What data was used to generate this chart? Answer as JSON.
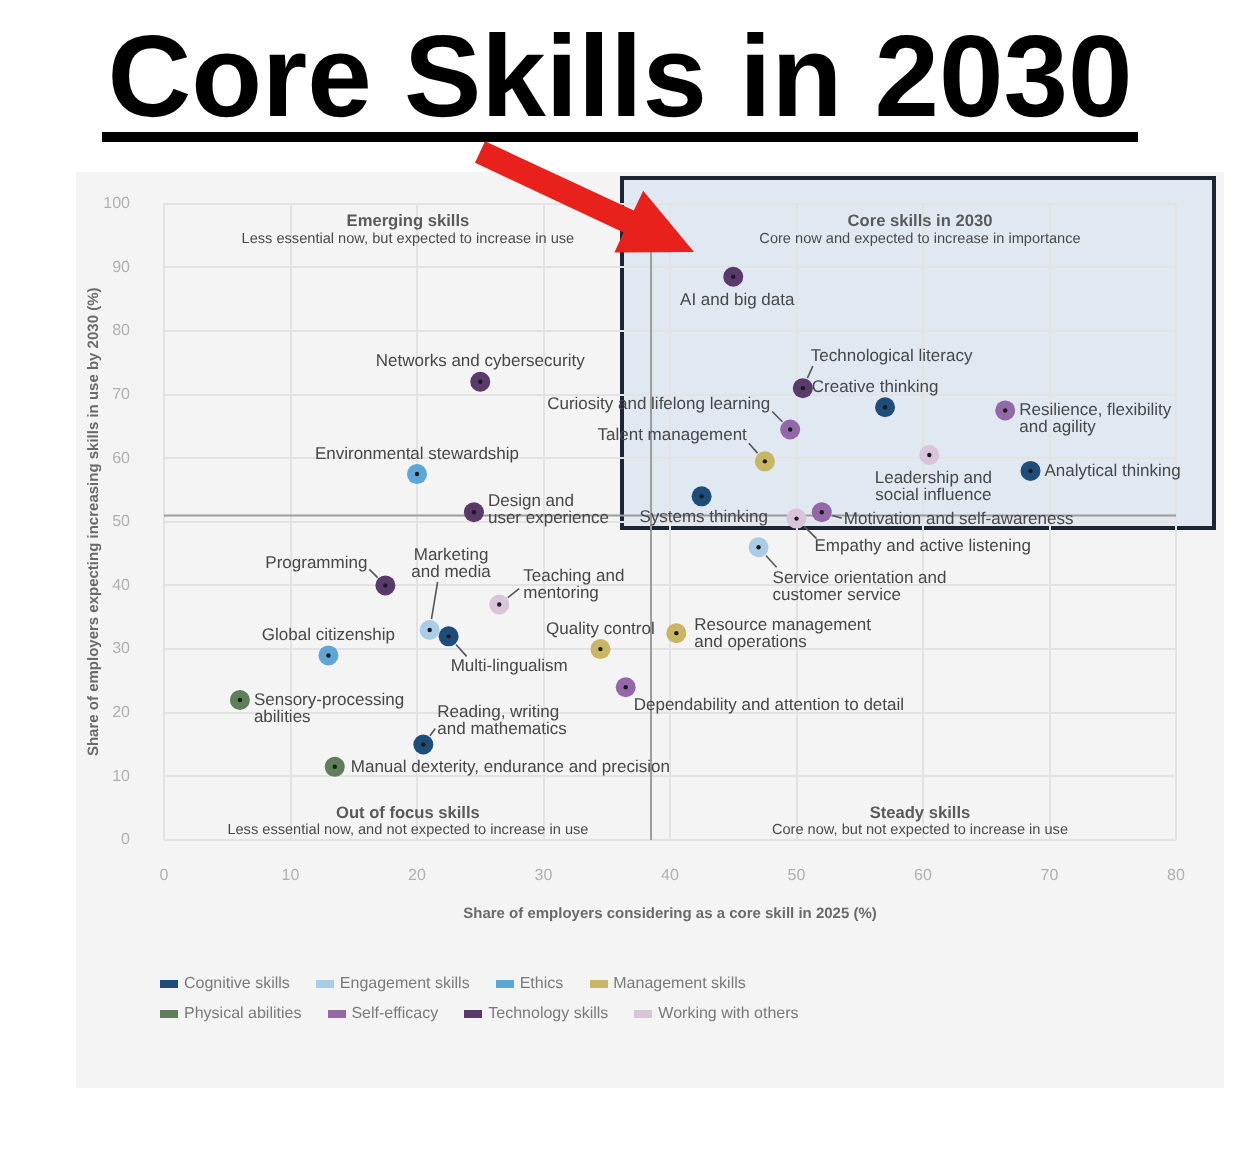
{
  "chart_data": {
    "type": "scatter",
    "title": "Core Skills in 2030",
    "xlabel": "Share of employers considering as a core skill in 2025 (%)",
    "ylabel": "Share of employers expecting increasing skills in use by 2030 (%)",
    "xlim": [
      0,
      80
    ],
    "xticks": [
      0,
      10,
      20,
      30,
      40,
      50,
      60,
      70,
      80
    ],
    "ylim": [
      0,
      100
    ],
    "yticks": [
      0,
      10,
      20,
      30,
      40,
      50,
      60,
      70,
      80,
      90,
      100
    ],
    "grid": true,
    "legend": "bottom",
    "marker": "circle",
    "ref_lines": [
      {
        "axis": "x",
        "value": 38.5
      },
      {
        "axis": "y",
        "value": 51
      }
    ],
    "series": [
      {
        "name": "Cognitive skills",
        "color": "#1e4d7a",
        "x": [
          57,
          68.5,
          42.5,
          22.5,
          20.5
        ],
        "values": [
          68,
          58,
          54,
          32,
          15
        ]
      },
      {
        "name": "Engagement skills",
        "color": "#a9cde6",
        "x": [
          21,
          47
        ],
        "values": [
          33,
          46
        ]
      },
      {
        "name": "Ethics",
        "color": "#5ea6d6",
        "x": [
          20,
          13
        ],
        "values": [
          57.5,
          29
        ]
      },
      {
        "name": "Management skills",
        "color": "#c9b662",
        "x": [
          47.5,
          34.5,
          40.5
        ],
        "values": [
          59.5,
          30,
          32.5
        ]
      },
      {
        "name": "Physical abilities",
        "color": "#5e7f5a",
        "x": [
          6,
          13.5
        ],
        "values": [
          22,
          11.5
        ]
      },
      {
        "name": "Self-efficacy",
        "color": "#9467a8",
        "x": [
          49.5,
          66.5,
          52,
          36.5
        ],
        "values": [
          64.5,
          67.5,
          51.5,
          24
        ]
      },
      {
        "name": "Technology skills",
        "color": "#5a3a6a",
        "x": [
          45,
          50.5,
          25,
          17.5,
          24.5
        ],
        "values": [
          88.5,
          71,
          72,
          40,
          51.5
        ]
      },
      {
        "name": "Working with others",
        "color": "#d9c5d9",
        "x": [
          60.5,
          50,
          26.5
        ],
        "values": [
          60.5,
          50.5,
          37
        ]
      }
    ],
    "annotations": [
      "Emerging skills",
      "Less essential now, but expected to increase in use",
      "Core skills in 2030",
      "Core now and expected to increase in importance",
      "Out of focus skills",
      "Less essential now, and not expected to increase in use",
      "Steady skills",
      "Core now, but not expected to increase in use",
      {
        "text": "Creative thinking",
        "x": 57,
        "y": 68
      },
      {
        "text": "Analytical thinking",
        "x": 68.5,
        "y": 58
      },
      {
        "text": "Systems thinking",
        "x": 42.5,
        "y": 54
      },
      {
        "text": "Multi-lingualism",
        "x": 22.5,
        "y": 32
      },
      {
        "text": "Reading, writing and mathematics",
        "x": 20.5,
        "y": 15
      },
      {
        "text": "Marketing and media",
        "x": 21,
        "y": 33
      },
      {
        "text": "Service orientation and customer service",
        "x": 47,
        "y": 46
      },
      {
        "text": "Environmental stewardship",
        "x": 20,
        "y": 57.5
      },
      {
        "text": "Global citizenship",
        "x": 13,
        "y": 29
      },
      {
        "text": "Talent management",
        "x": 47.5,
        "y": 59.5
      },
      {
        "text": "Quality control",
        "x": 34.5,
        "y": 30
      },
      {
        "text": "Resource management and operations",
        "x": 40.5,
        "y": 32.5
      },
      {
        "text": "Sensory-processing abilities",
        "x": 6,
        "y": 22
      },
      {
        "text": "Manual dexterity, endurance and precision",
        "x": 13.5,
        "y": 11.5
      },
      {
        "text": "Curiosity and lifelong learning",
        "x": 49.5,
        "y": 64.5
      },
      {
        "text": "Resilience, flexibility and agility",
        "x": 66.5,
        "y": 67.5
      },
      {
        "text": "Motivation and self-awareness",
        "x": 52,
        "y": 51.5
      },
      {
        "text": "Dependability and attention to detail",
        "x": 36.5,
        "y": 24
      },
      {
        "text": "AI and big data",
        "x": 45,
        "y": 88.5
      },
      {
        "text": "Technological literacy",
        "x": 50.5,
        "y": 71
      },
      {
        "text": "Networks and cybersecurity",
        "x": 25,
        "y": 72
      },
      {
        "text": "Programming",
        "x": 17.5,
        "y": 40
      },
      {
        "text": "Design and user experience",
        "x": 24.5,
        "y": 51.5
      },
      {
        "text": "Leadership and social influence",
        "x": 60.5,
        "y": 60.5
      },
      {
        "text": "Empathy and active listening",
        "x": 50,
        "y": 50.5
      },
      {
        "text": "Teaching and mentoring",
        "x": 26.5,
        "y": 37
      }
    ]
  }
}
